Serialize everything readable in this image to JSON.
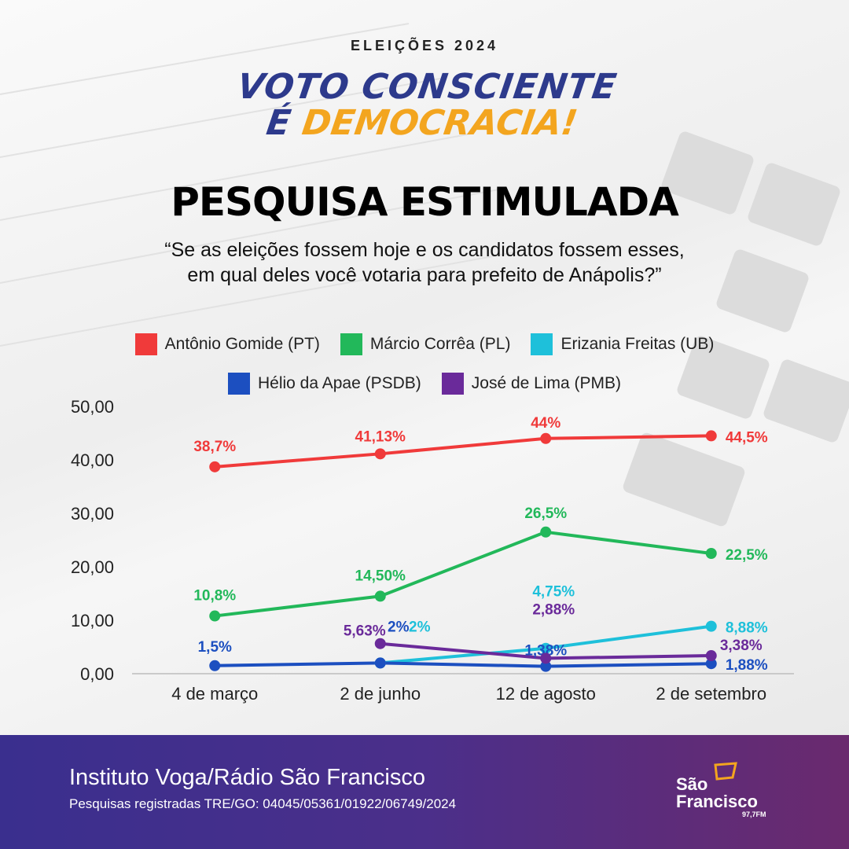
{
  "header": {
    "eyebrow": "ELEIÇÕES 2024",
    "slogan_line1": "VOTO CONSCIENTE",
    "slogan_e": "É",
    "slogan_d": "DEMOCRACIA!",
    "title": "PESQUISA ESTIMULADA",
    "question_line1": "“Se as eleições fossem hoje e os candidatos fossem esses,",
    "question_line2": "em qual deles você votaria para prefeito de Anápolis?”"
  },
  "chart_data": {
    "type": "line",
    "categories": [
      "4 de março",
      "2 de junho",
      "12 de agosto",
      "2 de setembro"
    ],
    "ylim": [
      0,
      50
    ],
    "yticks": [
      0,
      10,
      20,
      30,
      40,
      50
    ],
    "ytick_labels": [
      "0,00",
      "10,00",
      "20,00",
      "30,00",
      "40,00",
      "50,00"
    ],
    "grid": false,
    "legend_placement": "top",
    "series": [
      {
        "name": "Antônio Gomide (PT)",
        "color": "#f03a3a",
        "values": [
          38.7,
          41.13,
          44,
          44.5
        ],
        "labels": [
          "38,7%",
          "41,13%",
          "44%",
          "44,5%"
        ]
      },
      {
        "name": "Márcio Corrêa (PL)",
        "color": "#22b85a",
        "values": [
          10.8,
          14.5,
          26.5,
          22.5
        ],
        "labels": [
          "10,8%",
          "14,50%",
          "26,5%",
          "22,5%"
        ]
      },
      {
        "name": "Erizania Freitas (UB)",
        "color": "#1ec0da",
        "values": [
          null,
          2,
          4.75,
          8.88
        ],
        "labels": [
          "",
          "2%",
          "4,75%",
          "8,88%"
        ]
      },
      {
        "name": "Hélio da Apae (PSDB)",
        "color": "#1c4fc0",
        "values": [
          1.5,
          2,
          1.38,
          1.88
        ],
        "labels": [
          "1,5%",
          "2%",
          "1,38%",
          "1,88%"
        ]
      },
      {
        "name": "José de Lima (PMB)",
        "color": "#6a2a9a",
        "values": [
          null,
          5.63,
          2.88,
          3.38
        ],
        "labels": [
          "",
          "5,63%",
          "2,88%",
          "3,38%"
        ]
      }
    ]
  },
  "footer": {
    "source": "Instituto Voga/Rádio São Francisco",
    "registry": "Pesquisas registradas TRE/GO: 04045/05361/01922/06749/2024",
    "logo_line1": "São",
    "logo_line2": "Francisco",
    "logo_freq": "97,7FM"
  }
}
